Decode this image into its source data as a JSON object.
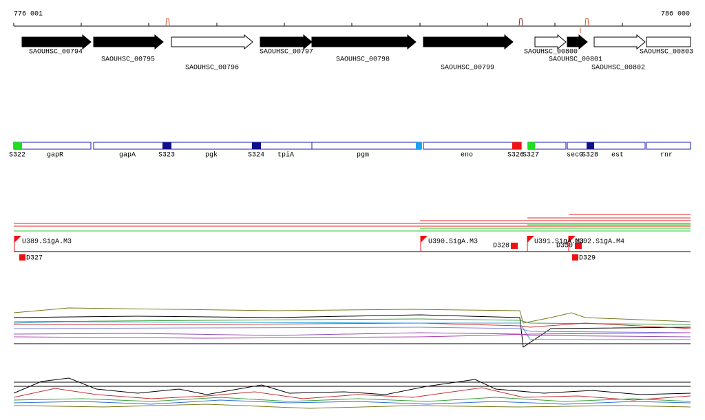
{
  "axis": {
    "start": "776 001",
    "end": "786 000"
  },
  "genes": [
    "SAOUHSC_00794",
    "SAOUHSC_00795",
    "SAOUHSC_00796",
    "SAOUHSC_00797",
    "SAOUHSC_00798",
    "SAOUHSC_00799",
    "SAOUHSC_00800",
    "SAOUHSC_00801",
    "SAOUHSC_00802",
    "SAOUHSC_00803"
  ],
  "features": [
    "S322",
    "gapR",
    "gapA",
    "S323",
    "pgk",
    "S324",
    "tpiA",
    "pgm",
    "eno",
    "S326",
    "S327",
    "secG",
    "S328",
    "est",
    "rnr"
  ],
  "promoters": [
    "U389.SigA.M3",
    "U390.SigA.M3",
    "U391.SigA.M3",
    "U392.SigA.M4"
  ],
  "terminators": [
    "D327",
    "D328",
    "D329",
    "D330"
  ]
}
